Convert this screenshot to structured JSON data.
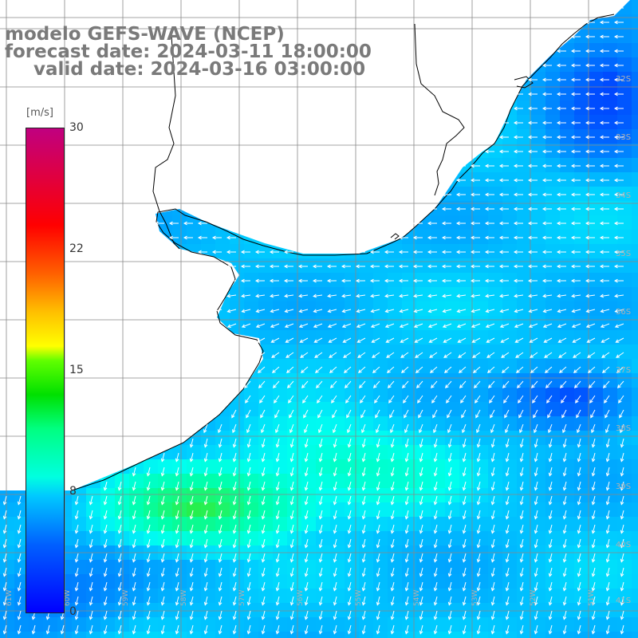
{
  "title": {
    "line1": "modelo GEFS-WAVE (NCEP)",
    "line2": "forecast date: 2024-03-11 18:00:00",
    "line3": "valid date: 2024-03-16 03:00:00"
  },
  "colorbar": {
    "unit": "[m/s]",
    "ticks": [
      {
        "value": 30,
        "label": "30"
      },
      {
        "value": 22,
        "label": "22"
      },
      {
        "value": 15,
        "label": "15"
      },
      {
        "value": 8,
        "label": "8"
      },
      {
        "value": 0,
        "label": "0"
      }
    ],
    "min": 0,
    "max": 30
  },
  "map": {
    "latitude_labels": [
      "32S",
      "33S",
      "34S",
      "35S",
      "36S",
      "37S",
      "38S",
      "39S",
      "40S",
      "41S"
    ],
    "longitude_labels": [
      "61W",
      "60W",
      "59W",
      "58W",
      "57W",
      "56W",
      "55W",
      "54W",
      "53W",
      "52W",
      "51W"
    ],
    "land_color": "#ffffff",
    "coast_color": "#000000",
    "grid_color": "#888888"
  }
}
